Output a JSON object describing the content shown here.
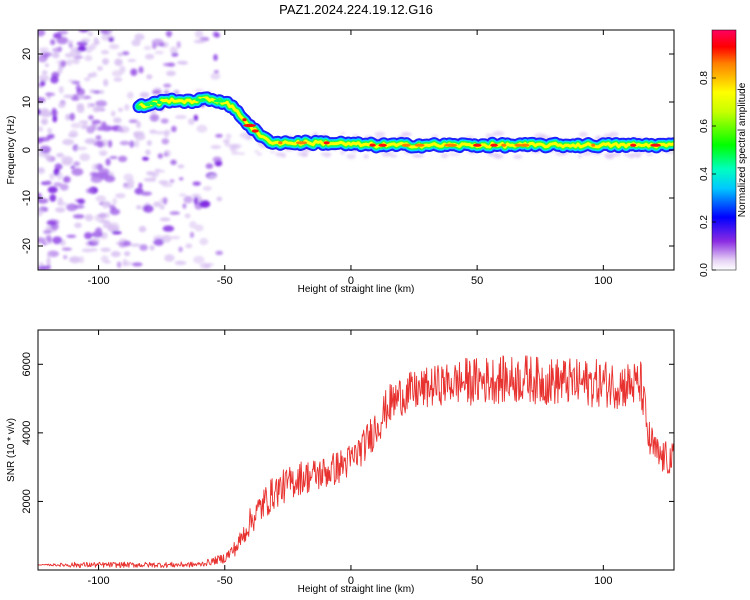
{
  "title": "PAZ1.2024.224.19.12.G16",
  "chart_data": [
    {
      "type": "heatmap",
      "xlabel": "Height of straight line (km)",
      "ylabel": "Frequency (Hz)",
      "xlim": [
        -124,
        128
      ],
      "ylim": [
        -25,
        25
      ],
      "xticks": [
        -100,
        -50,
        0,
        50,
        100
      ],
      "yticks": [
        -20,
        -10,
        0,
        10,
        20
      ],
      "colorbar": {
        "label": "Normalized spectral amplitude",
        "range": [
          0,
          1
        ],
        "ticks": [
          0.0,
          0.2,
          0.4,
          0.6,
          0.8
        ],
        "colors": [
          "#ffffff",
          "#d8b8f0",
          "#8a2be2",
          "#0000ff",
          "#00ffff",
          "#00ff00",
          "#ffff00",
          "#ff8000",
          "#ff0000",
          "#ff0060"
        ]
      },
      "ridge": {
        "x": [
          -84,
          -80,
          -75,
          -70,
          -65,
          -60,
          -55,
          -50,
          -45,
          -40,
          -35,
          -30,
          -25,
          -20,
          -10,
          0,
          10,
          20,
          30,
          40,
          50,
          60,
          70,
          80,
          90,
          100,
          110,
          120,
          128
        ],
        "y": [
          9,
          9.5,
          10,
          10.5,
          10,
          10.5,
          10.5,
          10,
          8,
          5,
          2.5,
          1.5,
          1.5,
          1.5,
          1.5,
          1.2,
          1,
          1,
          1,
          1,
          1,
          1,
          1,
          1,
          1,
          1,
          1,
          1,
          1
        ]
      },
      "grid": false
    },
    {
      "type": "line",
      "xlabel": "Height of straight line (km)",
      "ylabel": "SNR (10 * v/v)",
      "xlim": [
        -124,
        128
      ],
      "ylim": [
        0,
        7000
      ],
      "xticks": [
        -100,
        -50,
        0,
        50,
        100
      ],
      "yticks": [
        2000,
        4000,
        6000
      ],
      "series": [
        {
          "color": "#e8322f",
          "x": [
            -124,
            -110,
            -100,
            -90,
            -80,
            -70,
            -60,
            -55,
            -50,
            -45,
            -40,
            -35,
            -30,
            -25,
            -20,
            -15,
            -10,
            -5,
            0,
            5,
            10,
            15,
            20,
            25,
            30,
            35,
            40,
            45,
            50,
            55,
            60,
            65,
            70,
            75,
            80,
            85,
            90,
            95,
            100,
            105,
            110,
            115,
            118,
            122,
            128
          ],
          "y": [
            150,
            150,
            150,
            150,
            150,
            150,
            160,
            250,
            350,
            700,
            1400,
            1900,
            2300,
            2500,
            2700,
            2750,
            2850,
            3000,
            3200,
            3600,
            4200,
            4800,
            5100,
            5200,
            5300,
            5400,
            5450,
            5500,
            5500,
            5550,
            5550,
            5550,
            5600,
            5500,
            5500,
            5500,
            5450,
            5450,
            5450,
            5400,
            5400,
            5400,
            3800,
            3300,
            3200
          ],
          "noise": [
            0,
            80,
            80,
            80,
            80,
            80,
            80,
            100,
            150,
            250,
            400,
            500,
            500,
            500,
            500,
            500,
            500,
            500,
            500,
            500,
            600,
            600,
            600,
            600,
            600,
            600,
            600,
            700,
            700,
            700,
            700,
            700,
            700,
            700,
            700,
            700,
            700,
            700,
            700,
            700,
            700,
            700,
            600,
            500,
            500
          ]
        }
      ],
      "grid": false
    }
  ]
}
